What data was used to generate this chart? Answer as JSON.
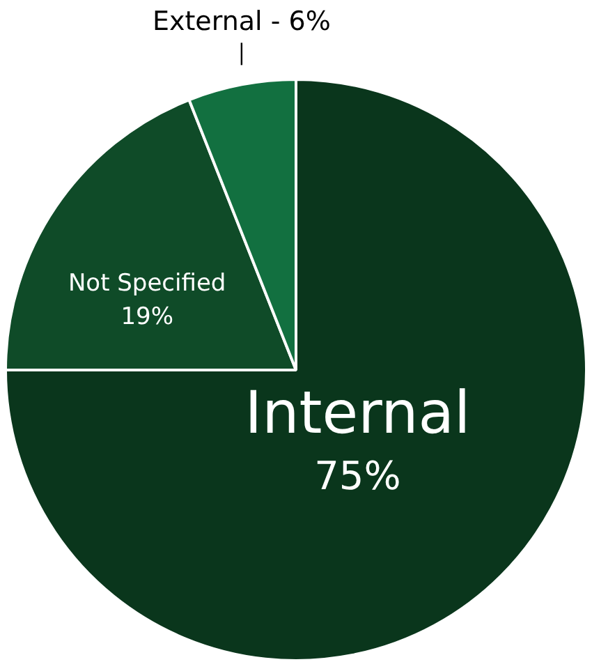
{
  "chart_data": {
    "type": "pie",
    "categories": [
      "Internal",
      "Not Specified",
      "External"
    ],
    "values": [
      75,
      19,
      6
    ],
    "value_labels": [
      "75%",
      "19%",
      "6%"
    ],
    "colors": [
      "#0a361c",
      "#0f4b28",
      "#127040"
    ],
    "legend": false
  }
}
